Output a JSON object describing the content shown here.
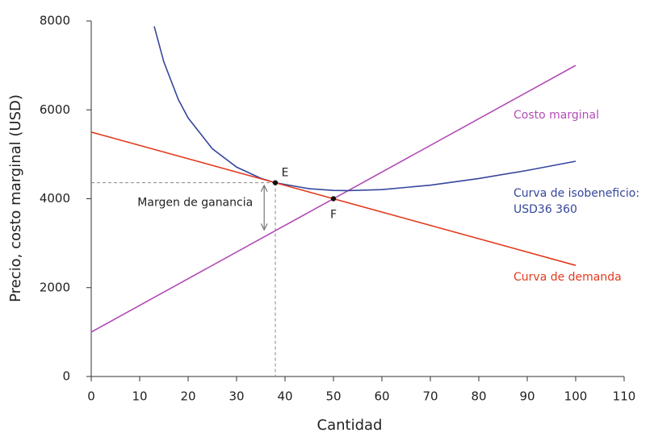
{
  "chart_data": {
    "type": "line",
    "xlabel": "Cantidad",
    "ylabel": "Precio, costo marginal (USD)",
    "xlim": [
      0,
      110
    ],
    "ylim": [
      0,
      8000
    ],
    "xticks": [
      0,
      10,
      20,
      30,
      40,
      50,
      60,
      70,
      80,
      90,
      100,
      110
    ],
    "yticks": [
      0,
      2000,
      4000,
      6000,
      8000
    ],
    "series": [
      {
        "name": "Costo marginal",
        "color": "#b24cb6",
        "x": [
          0,
          100
        ],
        "values": [
          1000,
          7000
        ]
      },
      {
        "name": "Curva de isobeneficio: USD36 360",
        "color": "#35479b",
        "x": [
          13,
          15,
          18,
          20,
          25,
          30,
          35,
          38,
          45,
          50,
          53,
          60,
          70,
          80,
          90,
          100
        ],
        "values": [
          7879,
          7074,
          6227,
          5818,
          5124,
          4712,
          4460,
          4360,
          4225,
          4187,
          4182,
          4206,
          4305,
          4454,
          4637,
          4844
        ]
      },
      {
        "name": "Curva de demanda",
        "color": "#e23a1e",
        "x": [
          0,
          100
        ],
        "values": [
          5500,
          2500
        ]
      }
    ],
    "points": [
      {
        "label": "E",
        "x": 38,
        "y": 4360
      },
      {
        "label": "F",
        "x": 50,
        "y": 4000
      }
    ],
    "annotation": {
      "text": "Margen de ganancia",
      "x": 35.7,
      "y_top": 4300,
      "y_bottom": 3300
    }
  }
}
